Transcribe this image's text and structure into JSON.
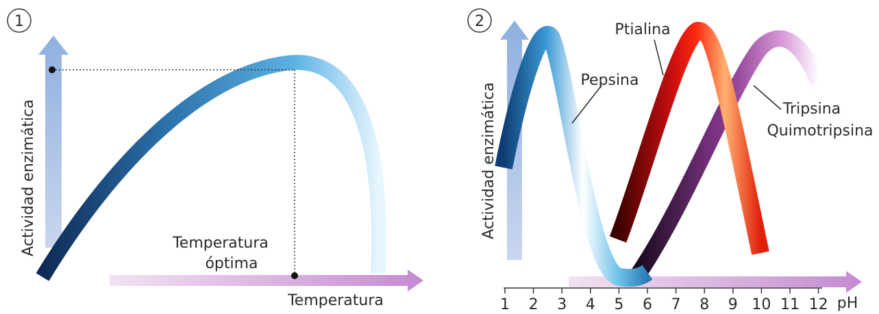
{
  "panel_1": {
    "number": "1",
    "y_axis_label": "Actividad enzimática",
    "x_axis_label": "Temperatura",
    "annotation_lines": [
      "Temperatura",
      "óptima"
    ]
  },
  "panel_2": {
    "number": "2",
    "y_axis_label": "Actividad enzimática",
    "x_axis_label": "pH",
    "ticks": [
      "1",
      "2",
      "3",
      "4",
      "5",
      "6",
      "7",
      "8",
      "9",
      "10",
      "11",
      "12"
    ],
    "curve_labels": [
      "Ptialina",
      "Pepsina",
      "Tripsina",
      "Quimotripsina"
    ]
  }
}
